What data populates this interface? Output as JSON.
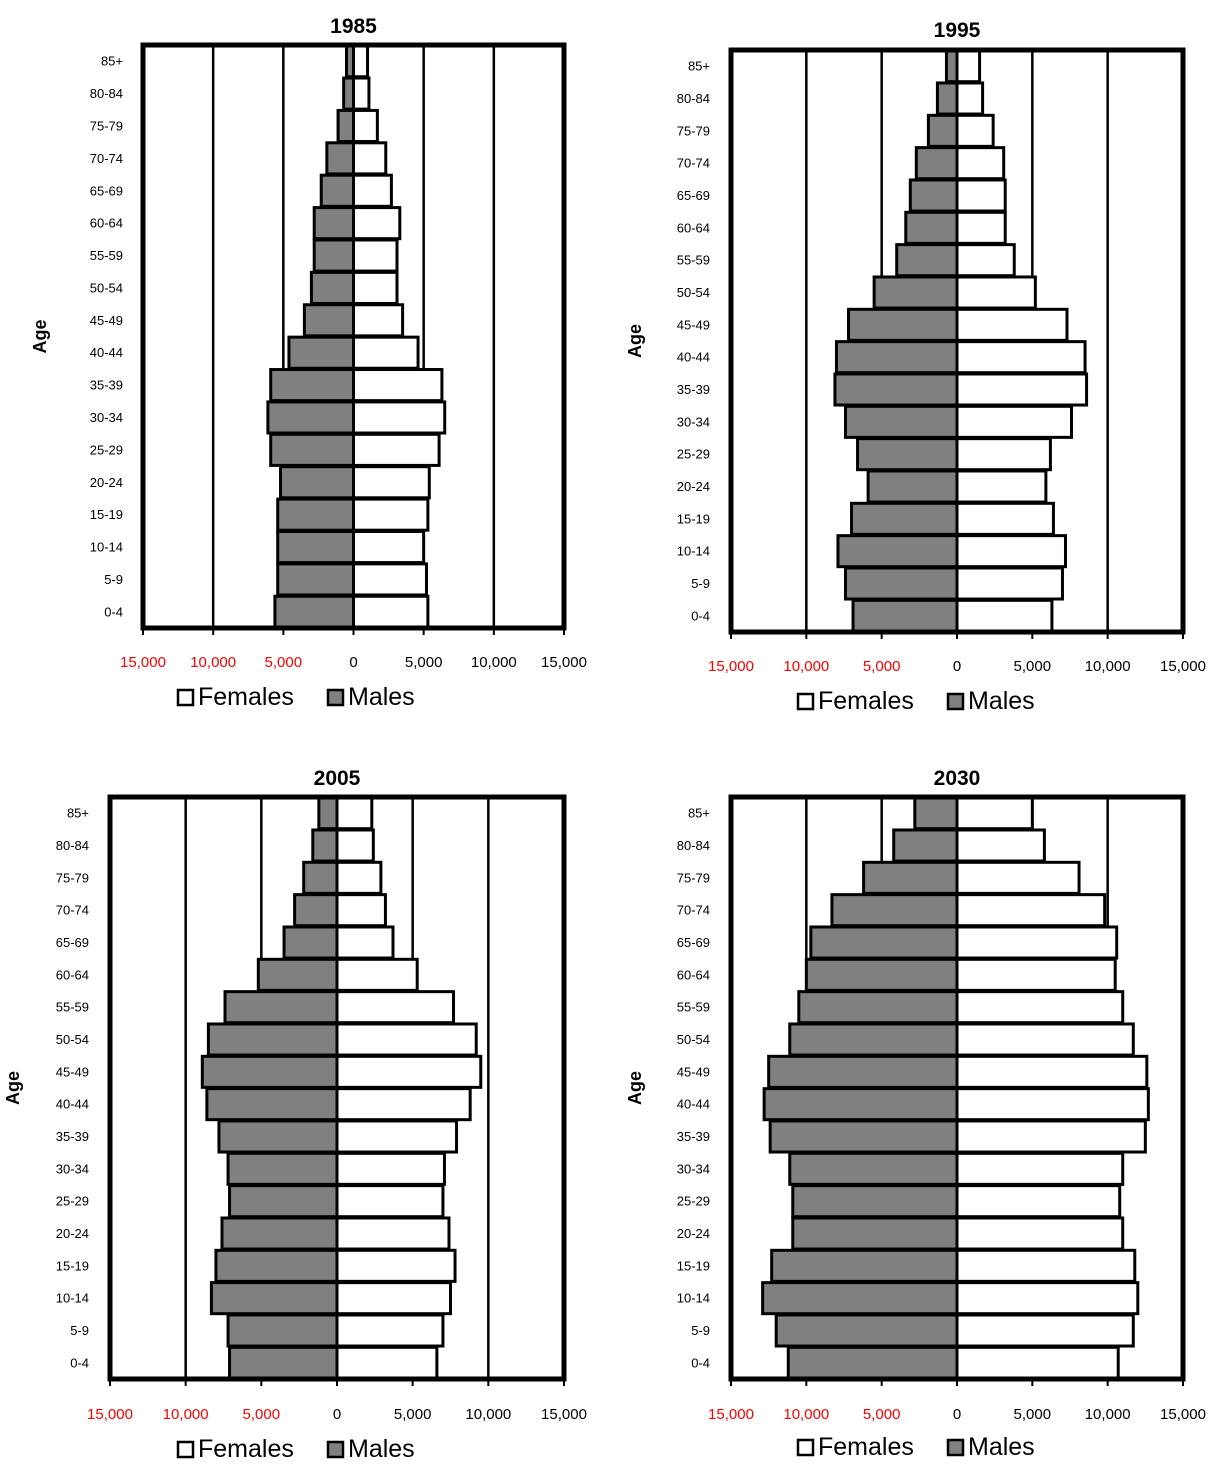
{
  "chart_data": [
    {
      "type": "bar",
      "orientation": "horizontal",
      "title": "1985",
      "ylabel": "Age",
      "xlabel": "",
      "xlim": [
        -15000,
        15000
      ],
      "grid": true,
      "legend_position": "bottom",
      "categories": [
        "0-4",
        "5-9",
        "10-14",
        "15-19",
        "20-24",
        "25-29",
        "30-34",
        "35-39",
        "40-44",
        "45-49",
        "50-54",
        "55-59",
        "60-64",
        "65-69",
        "70-74",
        "75-79",
        "80-84",
        "85+"
      ],
      "x_tick_labels": [
        {
          "value": -15000,
          "label": "15,000",
          "color": "#ff0000"
        },
        {
          "value": -10000,
          "label": "10,000",
          "color": "#ff0000"
        },
        {
          "value": -5000,
          "label": "5,000",
          "color": "#ff0000"
        },
        {
          "value": 0,
          "label": "0",
          "color": "#000000"
        },
        {
          "value": 5000,
          "label": "5,000",
          "color": "#000000"
        },
        {
          "value": 10000,
          "label": "10,000",
          "color": "#000000"
        },
        {
          "value": 15000,
          "label": "15,000",
          "color": "#000000"
        }
      ],
      "series": [
        {
          "name": "Females",
          "color": "#ffffff",
          "values": [
            5300,
            5200,
            5000,
            5300,
            5400,
            6100,
            6500,
            6300,
            4600,
            3500,
            3100,
            3100,
            3300,
            2700,
            2300,
            1700,
            1100,
            1000
          ]
        },
        {
          "name": "Males",
          "color": "#808080",
          "values": [
            5600,
            5400,
            5400,
            5400,
            5200,
            5900,
            6100,
            5900,
            4600,
            3500,
            3000,
            2800,
            2800,
            2300,
            1900,
            1100,
            700,
            500
          ]
        }
      ]
    },
    {
      "type": "bar",
      "orientation": "horizontal",
      "title": "1995",
      "ylabel": "Age",
      "xlabel": "",
      "xlim": [
        -15000,
        15000
      ],
      "grid": true,
      "legend_position": "bottom",
      "categories": [
        "0-4",
        "5-9",
        "10-14",
        "15-19",
        "20-24",
        "25-29",
        "30-34",
        "35-39",
        "40-44",
        "45-49",
        "50-54",
        "55-59",
        "60-64",
        "65-69",
        "70-74",
        "75-79",
        "80-84",
        "85+"
      ],
      "x_tick_labels": [
        {
          "value": -15000,
          "label": "15,000",
          "color": "#ff0000"
        },
        {
          "value": -10000,
          "label": "10,000",
          "color": "#ff0000"
        },
        {
          "value": -5000,
          "label": "5,000",
          "color": "#ff0000"
        },
        {
          "value": 0,
          "label": "0",
          "color": "#000000"
        },
        {
          "value": 5000,
          "label": "5,000",
          "color": "#000000"
        },
        {
          "value": 10000,
          "label": "10,000",
          "color": "#000000"
        },
        {
          "value": 15000,
          "label": "15,000",
          "color": "#000000"
        }
      ],
      "series": [
        {
          "name": "Females",
          "color": "#ffffff",
          "values": [
            6300,
            7000,
            7200,
            6400,
            5900,
            6200,
            7600,
            8600,
            8500,
            7300,
            5200,
            3800,
            3200,
            3200,
            3100,
            2400,
            1700,
            1500
          ]
        },
        {
          "name": "Males",
          "color": "#808080",
          "values": [
            6900,
            7400,
            7900,
            7000,
            5900,
            6600,
            7400,
            8100,
            8000,
            7200,
            5500,
            4000,
            3400,
            3100,
            2700,
            1900,
            1300,
            700
          ]
        }
      ]
    },
    {
      "type": "bar",
      "orientation": "horizontal",
      "title": "2005",
      "ylabel": "Age",
      "xlabel": "",
      "xlim": [
        -15000,
        15000
      ],
      "grid": true,
      "legend_position": "bottom",
      "categories": [
        "0-4",
        "5-9",
        "10-14",
        "15-19",
        "20-24",
        "25-29",
        "30-34",
        "35-39",
        "40-44",
        "45-49",
        "50-54",
        "55-59",
        "60-64",
        "65-69",
        "70-74",
        "75-79",
        "80-84",
        "85+"
      ],
      "x_tick_labels": [
        {
          "value": -15000,
          "label": "15,000",
          "color": "#ff0000"
        },
        {
          "value": -10000,
          "label": "10,000",
          "color": "#ff0000"
        },
        {
          "value": -5000,
          "label": "5,000",
          "color": "#ff0000"
        },
        {
          "value": 0,
          "label": "0",
          "color": "#000000"
        },
        {
          "value": 5000,
          "label": "5,000",
          "color": "#000000"
        },
        {
          "value": 10000,
          "label": "10,000",
          "color": "#000000"
        },
        {
          "value": 15000,
          "label": "15,000",
          "color": "#000000"
        }
      ],
      "series": [
        {
          "name": "Females",
          "color": "#ffffff",
          "values": [
            6600,
            7000,
            7500,
            7800,
            7400,
            7000,
            7100,
            7900,
            8800,
            9500,
            9200,
            7700,
            5300,
            3700,
            3200,
            2900,
            2400,
            2300
          ]
        },
        {
          "name": "Males",
          "color": "#808080",
          "values": [
            7100,
            7200,
            8300,
            8000,
            7600,
            7100,
            7200,
            7800,
            8600,
            8900,
            8500,
            7400,
            5200,
            3500,
            2800,
            2200,
            1600,
            1200
          ]
        }
      ]
    },
    {
      "type": "bar",
      "orientation": "horizontal",
      "title": "2030",
      "ylabel": "Age",
      "xlabel": "",
      "xlim": [
        -15000,
        15000
      ],
      "grid": true,
      "legend_position": "bottom",
      "categories": [
        "0-4",
        "5-9",
        "10-14",
        "15-19",
        "20-24",
        "25-29",
        "30-34",
        "35-39",
        "40-44",
        "45-49",
        "50-54",
        "55-59",
        "60-64",
        "65-69",
        "70-74",
        "75-79",
        "80-84",
        "85+"
      ],
      "x_tick_labels": [
        {
          "value": -15000,
          "label": "15,000",
          "color": "#ff0000"
        },
        {
          "value": -10000,
          "label": "10,000",
          "color": "#ff0000"
        },
        {
          "value": -5000,
          "label": "5,000",
          "color": "#ff0000"
        },
        {
          "value": 0,
          "label": "0",
          "color": "#000000"
        },
        {
          "value": 5000,
          "label": "5,000",
          "color": "#000000"
        },
        {
          "value": 10000,
          "label": "10,000",
          "color": "#000000"
        },
        {
          "value": 15000,
          "label": "15,000",
          "color": "#000000"
        }
      ],
      "series": [
        {
          "name": "Females",
          "color": "#ffffff",
          "values": [
            10700,
            11700,
            12000,
            11800,
            11000,
            10800,
            11000,
            12500,
            12700,
            12600,
            11700,
            11000,
            10500,
            10600,
            9800,
            8100,
            5800,
            5000
          ]
        },
        {
          "name": "Males",
          "color": "#808080",
          "values": [
            11200,
            12000,
            12900,
            12300,
            10900,
            10900,
            11100,
            12400,
            12800,
            12500,
            11100,
            10500,
            10000,
            9700,
            8300,
            6200,
            4200,
            2800
          ]
        }
      ]
    }
  ]
}
